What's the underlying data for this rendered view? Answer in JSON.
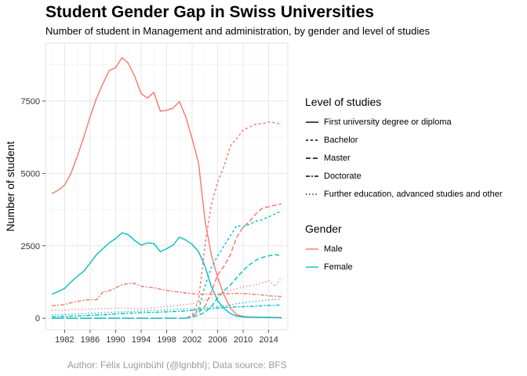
{
  "title": "Student Gender Gap in Swiss Universities",
  "subtitle": "Number of student in Management and administration, by gender and level of studies",
  "caption": "Author: Félix Luginbühl (@lgnbhl); Data source: BFS",
  "legend": {
    "level_title": "Level of studies",
    "levels": [
      {
        "label": "First university degree or diploma",
        "dash": "solid"
      },
      {
        "label": "Bachelor",
        "dash": "dashed"
      },
      {
        "label": "Master",
        "dash": "longdash"
      },
      {
        "label": "Doctorate",
        "dash": "twodash"
      },
      {
        "label": "Further education, advanced studies and other",
        "dash": "dotted"
      }
    ],
    "gender_title": "Gender",
    "genders": [
      {
        "label": "Male",
        "color": "#F8766D"
      },
      {
        "label": "Female",
        "color": "#00BFC4"
      }
    ]
  },
  "chart_data": {
    "type": "line",
    "title": "Student Gender Gap in Swiss Universities",
    "ylabel": "Number of student",
    "xlabel": "",
    "xlim": [
      1979,
      2017
    ],
    "ylim": [
      -400,
      9500
    ],
    "x_ticks": [
      1982,
      1986,
      1990,
      1994,
      1998,
      2002,
      2006,
      2010,
      2014
    ],
    "y_ticks": [
      0,
      2500,
      5000,
      7500
    ],
    "y_tick_labels": [
      "0",
      "2500",
      "5000",
      "7500"
    ],
    "grid": true,
    "legend_position": "right",
    "colors": {
      "Male": "#F8766D",
      "Female": "#00BFC4"
    },
    "series": [
      {
        "level": "First university degree or diploma",
        "gender": "Male",
        "dash": "solid",
        "x": [
          1980,
          1981,
          1982,
          1983,
          1984,
          1985,
          1986,
          1987,
          1988,
          1989,
          1990,
          1991,
          1992,
          1993,
          1994,
          1995,
          1996,
          1997,
          1998,
          1999,
          2000,
          2001,
          2002,
          2003,
          2004,
          2005,
          2006,
          2007,
          2008,
          2009,
          2010,
          2011,
          2012,
          2013,
          2014,
          2015,
          2016
        ],
        "y": [
          4300,
          4420,
          4600,
          5000,
          5600,
          6250,
          6950,
          7600,
          8100,
          8550,
          8650,
          9000,
          8800,
          8350,
          7750,
          7600,
          7800,
          7150,
          7180,
          7250,
          7480,
          6950,
          6200,
          5350,
          3400,
          2200,
          1400,
          800,
          350,
          120,
          60,
          40,
          35,
          30,
          30,
          25,
          20
        ]
      },
      {
        "level": "First university degree or diploma",
        "gender": "Female",
        "dash": "solid",
        "x": [
          1980,
          1981,
          1982,
          1983,
          1984,
          1985,
          1986,
          1987,
          1988,
          1989,
          1990,
          1991,
          1992,
          1993,
          1994,
          1995,
          1996,
          1997,
          1998,
          1999,
          2000,
          2001,
          2002,
          2003,
          2004,
          2005,
          2006,
          2007,
          2008,
          2009,
          2010,
          2011,
          2012,
          2013,
          2014,
          2015,
          2016
        ],
        "y": [
          830,
          920,
          1030,
          1250,
          1450,
          1620,
          1900,
          2200,
          2400,
          2600,
          2750,
          2950,
          2880,
          2680,
          2520,
          2600,
          2580,
          2300,
          2400,
          2520,
          2800,
          2700,
          2550,
          2300,
          1800,
          1100,
          600,
          330,
          160,
          70,
          40,
          35,
          30,
          28,
          25,
          22,
          20
        ]
      },
      {
        "level": "Bachelor",
        "gender": "Male",
        "dash": "dashed",
        "x": [
          1980,
          1999,
          2000,
          2001,
          2002,
          2003,
          2004,
          2005,
          2006,
          2007,
          2008,
          2009,
          2010,
          2011,
          2012,
          2013,
          2014,
          2015,
          2016
        ],
        "y": [
          0,
          0,
          0,
          0,
          100,
          600,
          2500,
          3900,
          4700,
          5250,
          5950,
          6200,
          6500,
          6600,
          6700,
          6720,
          6780,
          6750,
          6700
        ]
      },
      {
        "level": "Bachelor",
        "gender": "Female",
        "dash": "dashed",
        "x": [
          1980,
          1999,
          2000,
          2001,
          2002,
          2003,
          2004,
          2005,
          2006,
          2007,
          2008,
          2009,
          2010,
          2011,
          2012,
          2013,
          2014,
          2015,
          2016
        ],
        "y": [
          0,
          0,
          0,
          0,
          50,
          300,
          1100,
          1750,
          2150,
          2500,
          2850,
          3200,
          3150,
          3250,
          3350,
          3400,
          3500,
          3600,
          3700
        ]
      },
      {
        "level": "Master",
        "gender": "Male",
        "dash": "longdash",
        "x": [
          1980,
          2001,
          2002,
          2003,
          2004,
          2005,
          2006,
          2007,
          2008,
          2009,
          2010,
          2011,
          2012,
          2013,
          2014,
          2015,
          2016
        ],
        "y": [
          0,
          0,
          80,
          200,
          400,
          900,
          1500,
          1800,
          2200,
          2800,
          3150,
          3350,
          3600,
          3800,
          3850,
          3900,
          3950
        ]
      },
      {
        "level": "Master",
        "gender": "Female",
        "dash": "longdash",
        "x": [
          1980,
          2001,
          2002,
          2003,
          2004,
          2005,
          2006,
          2007,
          2008,
          2009,
          2010,
          2011,
          2012,
          2013,
          2014,
          2015,
          2016
        ],
        "y": [
          0,
          0,
          40,
          100,
          200,
          400,
          700,
          950,
          1150,
          1400,
          1650,
          1850,
          2000,
          2100,
          2150,
          2200,
          2150
        ]
      },
      {
        "level": "Doctorate",
        "gender": "Male",
        "dash": "twodash",
        "x": [
          1980,
          1981,
          1982,
          1983,
          1984,
          1985,
          1986,
          1987,
          1988,
          1989,
          1990,
          1991,
          1992,
          1993,
          1994,
          1995,
          1996,
          1997,
          1998,
          1999,
          2000,
          2001,
          2002,
          2003,
          2004,
          2005,
          2006,
          2007,
          2008,
          2009,
          2010,
          2011,
          2012,
          2013,
          2014,
          2015,
          2016
        ],
        "y": [
          430,
          450,
          470,
          530,
          580,
          620,
          640,
          640,
          900,
          950,
          1050,
          1150,
          1200,
          1200,
          1100,
          1080,
          1050,
          1000,
          960,
          930,
          900,
          870,
          850,
          830,
          830,
          820,
          830,
          840,
          850,
          860,
          850,
          840,
          820,
          800,
          770,
          760,
          750
        ]
      },
      {
        "level": "Doctorate",
        "gender": "Female",
        "dash": "twodash",
        "x": [
          1980,
          1981,
          1982,
          1983,
          1984,
          1985,
          1986,
          1987,
          1988,
          1989,
          1990,
          1991,
          1992,
          1993,
          1994,
          1995,
          1996,
          1997,
          1998,
          1999,
          2000,
          2001,
          2002,
          2003,
          2004,
          2005,
          2006,
          2007,
          2008,
          2009,
          2010,
          2011,
          2012,
          2013,
          2014,
          2015,
          2016
        ],
        "y": [
          50,
          55,
          60,
          70,
          80,
          90,
          100,
          110,
          120,
          130,
          150,
          160,
          170,
          180,
          190,
          200,
          200,
          210,
          220,
          230,
          240,
          250,
          270,
          290,
          310,
          330,
          350,
          370,
          380,
          390,
          400,
          410,
          420,
          430,
          440,
          450,
          450
        ]
      },
      {
        "level": "Further education, advanced studies and other",
        "gender": "Male",
        "dash": "dotted",
        "x": [
          1980,
          1981,
          1982,
          1983,
          1984,
          1985,
          1986,
          1987,
          1988,
          1989,
          1990,
          1991,
          1992,
          1993,
          1994,
          1995,
          1996,
          1997,
          1998,
          1999,
          2000,
          2001,
          2002,
          2003,
          2004,
          2005,
          2006,
          2007,
          2008,
          2009,
          2010,
          2011,
          2012,
          2013,
          2014,
          2015,
          2016
        ],
        "y": [
          270,
          280,
          280,
          300,
          300,
          310,
          320,
          320,
          330,
          330,
          350,
          350,
          340,
          330,
          330,
          340,
          360,
          380,
          400,
          420,
          450,
          470,
          500,
          550,
          620,
          700,
          800,
          880,
          960,
          1020,
          1080,
          1120,
          1150,
          1220,
          1300,
          1100,
          1400
        ]
      },
      {
        "level": "Further education, advanced studies and other",
        "gender": "Female",
        "dash": "dotted",
        "x": [
          1980,
          1981,
          1982,
          1983,
          1984,
          1985,
          1986,
          1987,
          1988,
          1989,
          1990,
          1991,
          1992,
          1993,
          1994,
          1995,
          1996,
          1997,
          1998,
          1999,
          2000,
          2001,
          2002,
          2003,
          2004,
          2005,
          2006,
          2007,
          2008,
          2009,
          2010,
          2011,
          2012,
          2013,
          2014,
          2015,
          2016
        ],
        "y": [
          120,
          125,
          130,
          140,
          150,
          160,
          170,
          180,
          190,
          200,
          210,
          220,
          230,
          240,
          250,
          260,
          270,
          280,
          290,
          300,
          310,
          320,
          330,
          340,
          360,
          380,
          400,
          430,
          460,
          500,
          530,
          560,
          580,
          600,
          630,
          650,
          660
        ]
      }
    ]
  }
}
